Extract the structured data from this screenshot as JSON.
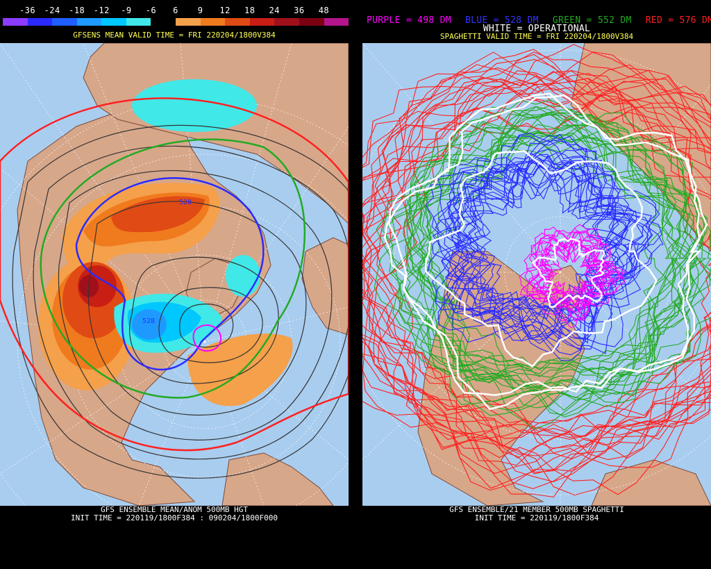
{
  "left_panel": {
    "color_scale": {
      "labels": [
        "-36",
        "-24",
        "-18",
        "-12",
        "-9",
        "-6",
        "6",
        "9",
        "12",
        "18",
        "24",
        "36",
        "48"
      ],
      "colors": [
        "#8c3cff",
        "#2a2aff",
        "#1e5fff",
        "#1e9aff",
        "#00c8ff",
        "#40e8e8",
        "#000000",
        "#f5a04a",
        "#f07a1e",
        "#e04a14",
        "#c81e14",
        "#a0101a",
        "#7a0012",
        "#b4148c"
      ]
    },
    "header": "GFSENS MEAN VALID TIME = FRI 220204/1800V384",
    "contour_labels": [
      "528",
      "528"
    ],
    "footer_line1": "GFS ENSEMBLE MEAN/ANOM 500MB HGT",
    "footer_line2": "INIT TIME = 220119/1800F384 : 090204/1800F000"
  },
  "right_panel": {
    "legend": {
      "purple": "PURPLE = 498 DM",
      "blue": "BLUE = 528 DM",
      "green": "GREEN = 552 DM",
      "red": "RED = 576 DM",
      "white": "WHITE = OPERATIONAL"
    },
    "legend_colors": {
      "purple": "#ff00ff",
      "blue": "#3333ff",
      "green": "#22aa22",
      "red": "#ff2020",
      "white": "#ffffff"
    },
    "header": "SPAGHETTI VALID TIME = FRI 220204/1800V384",
    "footer_line1": "GFS ENSEMBLE/21 MEMBER 500MB SPAGHETTI",
    "footer_line2": "INIT TIME = 220119/1800F384"
  }
}
